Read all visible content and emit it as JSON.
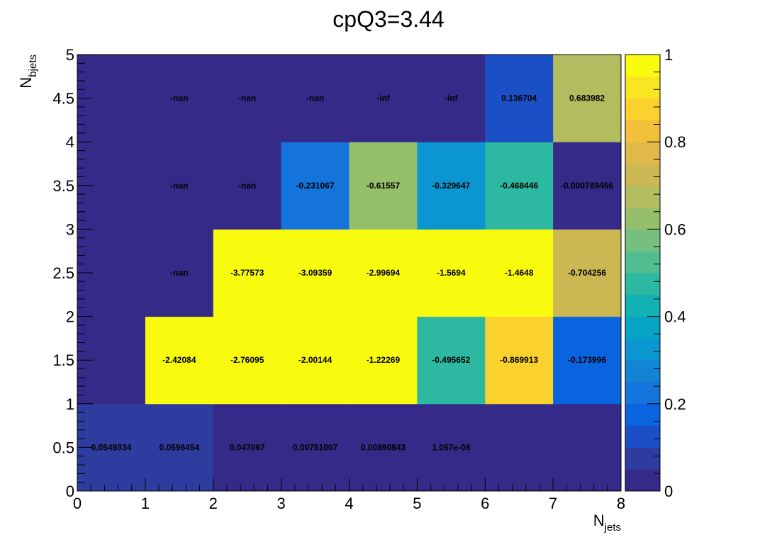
{
  "chart_data": {
    "type": "heatmap",
    "title": "cpQ3=3.44",
    "xlabel": {
      "main": "N",
      "sub": "jets"
    },
    "ylabel": {
      "main": "N",
      "sub": "bjets"
    },
    "xlim": [
      0,
      8
    ],
    "ylim": [
      0,
      5
    ],
    "zlim": [
      0,
      1
    ],
    "x_bins": [
      0,
      1,
      2,
      3,
      4,
      5,
      6,
      7,
      8
    ],
    "y_bins": [
      0,
      1,
      2,
      3,
      4,
      5
    ],
    "x_ticks": [
      "0",
      "1",
      "2",
      "3",
      "4",
      "5",
      "6",
      "7",
      "8"
    ],
    "y_ticks": [
      "0",
      "0.5",
      "1",
      "1.5",
      "2",
      "2.5",
      "3",
      "3.5",
      "4",
      "4.5",
      "5"
    ],
    "z_ticks": [
      "0",
      "0.2",
      "0.4",
      "0.6",
      "0.8",
      "1"
    ],
    "cells": [
      {
        "row": 0,
        "values": [
          0.0549334,
          0.0596454,
          0.047067,
          0.00751007,
          0.00890843,
          1.057e-08,
          null,
          null
        ],
        "labels": [
          "0.0549334",
          "0.0596454",
          "0.047067",
          "0.00751007",
          "0.00890843",
          "1.057e-08",
          "",
          ""
        ]
      },
      {
        "row": 1,
        "values": [
          null,
          1,
          1,
          1,
          1,
          0.495652,
          0.869913,
          0.173996
        ],
        "labels": [
          "",
          "-2.42084",
          "-2.76095",
          "-2.00144",
          "-1.22269",
          "-0.495652",
          "-0.869913",
          "-0.173996"
        ]
      },
      {
        "row": 2,
        "values": [
          null,
          null,
          1,
          1,
          1,
          1,
          1,
          0.704256
        ],
        "labels": [
          "",
          "-nan",
          "-3.77573",
          "-3.09359",
          "-2.99694",
          "-1.5694",
          "-1.4648",
          "-0.704256"
        ]
      },
      {
        "row": 3,
        "values": [
          null,
          null,
          null,
          0.231067,
          0.61557,
          0.329647,
          0.468446,
          0.000789456
        ],
        "labels": [
          "",
          "-nan",
          "-nan",
          "-0.231067",
          "-0.61557",
          "-0.329647",
          "-0.468446",
          "-0.000789456"
        ]
      },
      {
        "row": 4,
        "values": [
          null,
          null,
          null,
          null,
          null,
          null,
          0.136704,
          0.683982
        ],
        "labels": [
          "",
          "-nan",
          "-nan",
          "-nan",
          "-inf",
          "-inf",
          "0.136704",
          "0.683982"
        ]
      }
    ],
    "grid": false,
    "colormap": "parula"
  }
}
